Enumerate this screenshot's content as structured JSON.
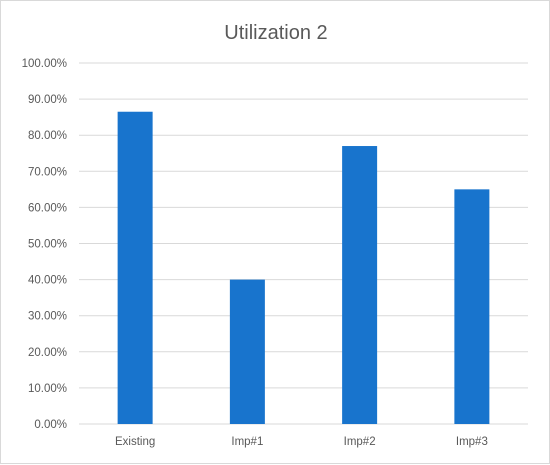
{
  "chart_data": {
    "type": "bar",
    "title": "Utilization 2",
    "categories": [
      "Existing",
      "Imp#1",
      "Imp#2",
      "Imp#3"
    ],
    "values": [
      0.865,
      0.4,
      0.77,
      0.65
    ],
    "ylim": [
      0,
      1
    ],
    "yticks": [
      0,
      0.1,
      0.2,
      0.3,
      0.4,
      0.5,
      0.6,
      0.7,
      0.8,
      0.9,
      1.0
    ],
    "ytick_labels": [
      "0.00%",
      "10.00%",
      "20.00%",
      "30.00%",
      "40.00%",
      "50.00%",
      "60.00%",
      "70.00%",
      "80.00%",
      "90.00%",
      "100.00%"
    ],
    "xlabel": "",
    "ylabel": "",
    "grid": true,
    "legend": "none",
    "bar_color": "#1874CD",
    "gridline_color": "#d9d9d9"
  }
}
